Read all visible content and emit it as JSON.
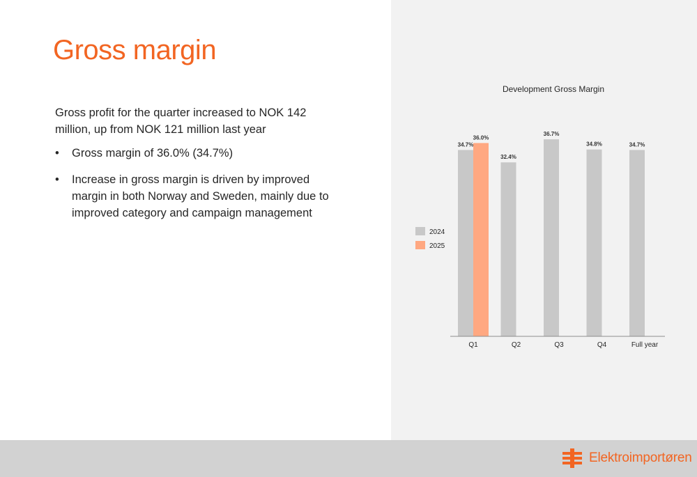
{
  "slide": {
    "title": "Gross margin",
    "intro": "Gross profit for the quarter increased to NOK 142 million, up from NOK 121 million last year",
    "bullets": [
      "Gross margin of 36.0% (34.7%)",
      "Increase in gross margin is driven by improved margin in both Norway and Sweden, mainly due to improved category and campaign management"
    ],
    "bullet_symbol": "•"
  },
  "colors": {
    "accent": "#f26522",
    "series_2024": "#c8c8c8",
    "series_2025": "#ffa881",
    "panel_bg": "#f2f2f2",
    "footer_bg": "#d2d2d2"
  },
  "chart_data": {
    "type": "bar",
    "title": "Development Gross Margin",
    "categories": [
      "Q1",
      "Q2",
      "Q3",
      "Q4",
      "Full year"
    ],
    "series": [
      {
        "name": "2024",
        "values": [
          34.7,
          32.4,
          36.7,
          34.8,
          34.7
        ],
        "labels": [
          "34.7%",
          "32.4%",
          "36.7%",
          "34.8%",
          "34.7%"
        ]
      },
      {
        "name": "2025",
        "values": [
          36.0,
          null,
          null,
          null,
          null
        ],
        "labels": [
          "36.0%",
          "",
          "",
          "",
          ""
        ]
      }
    ],
    "ylim": [
      0,
      38
    ],
    "grid": false,
    "legend_position": "left"
  },
  "logo": {
    "text": "Elektroimportøren",
    "icon": "elektroimportoren-logo-icon"
  }
}
